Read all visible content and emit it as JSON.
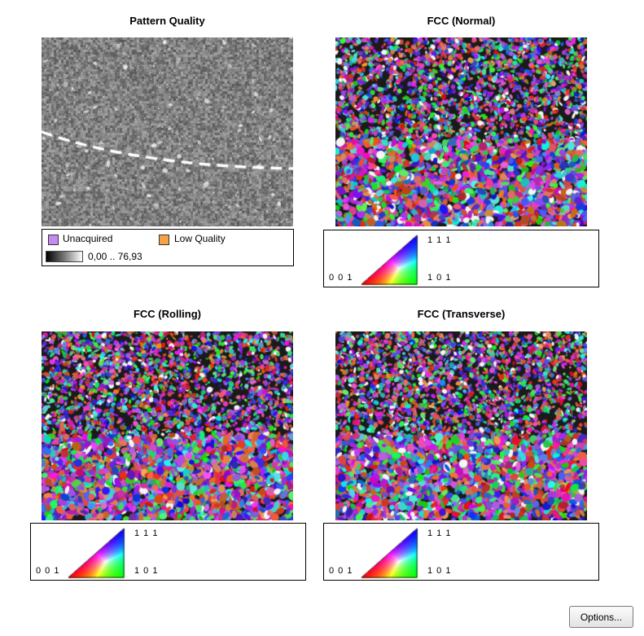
{
  "panels": {
    "pattern_quality": {
      "title": "Pattern Quality",
      "legend": {
        "unacquired_label": "Unacquired",
        "unacquired_color": "#c58cf0",
        "low_quality_label": "Low Quality",
        "low_quality_color": "#f7a247",
        "range_label": "0,00 .. 76,93"
      }
    },
    "normal": {
      "title": "FCC (Normal)"
    },
    "rolling": {
      "title": "FCC (Rolling)"
    },
    "transverse": {
      "title": "FCC (Transverse)"
    }
  },
  "ipf_key": {
    "label_001": "0 0 1",
    "label_101": "1 0 1",
    "label_111": "1 1 1"
  },
  "options_button_label": "Options..."
}
